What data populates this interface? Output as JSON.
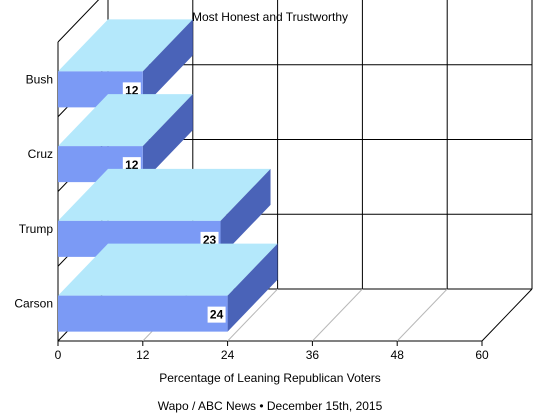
{
  "chart_data": {
    "type": "bar",
    "orientation": "horizontal",
    "style": "3d",
    "title": "Most Honest and Trustworthy",
    "xlabel": "Percentage of Leaning Republican Voters",
    "ylabel": "",
    "source": "Wapo / ABC News • December 15th, 2015",
    "categories": [
      "Carson",
      "Trump",
      "Cruz",
      "Bush"
    ],
    "values": [
      24,
      23,
      12,
      12
    ],
    "value_labels": [
      "24",
      "23",
      "12",
      "12"
    ],
    "xticks": [
      "0",
      "12",
      "24",
      "36",
      "48",
      "60"
    ],
    "xlim": [
      0,
      60
    ],
    "grid": true,
    "legend": "none",
    "colors": {
      "bar_front": "#7b9af5",
      "bar_top": "#b4e8fb",
      "bar_side": "#4a63b8",
      "grid": "#000000",
      "floor_grid": "#b8b8b8"
    }
  }
}
